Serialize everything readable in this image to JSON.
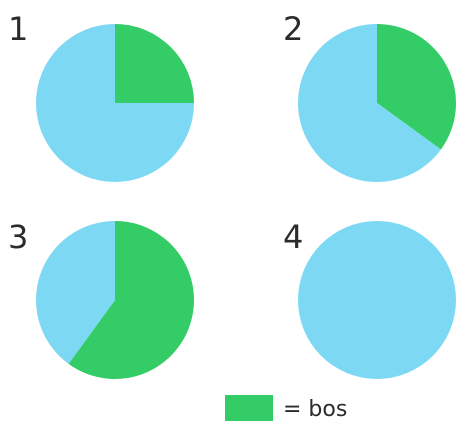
{
  "chart_data": [
    {
      "type": "pie",
      "number": "1",
      "categories": [
        "bos",
        "rest"
      ],
      "values": [
        0.25,
        0.75
      ],
      "colors": [
        "#33cc66",
        "#7dd8f4"
      ]
    },
    {
      "type": "pie",
      "number": "2",
      "categories": [
        "bos",
        "rest"
      ],
      "values": [
        0.35,
        0.65
      ],
      "colors": [
        "#33cc66",
        "#7dd8f4"
      ]
    },
    {
      "type": "pie",
      "number": "3",
      "categories": [
        "bos",
        "rest"
      ],
      "values": [
        0.6,
        0.4
      ],
      "colors": [
        "#33cc66",
        "#7dd8f4"
      ]
    },
    {
      "type": "pie",
      "number": "4",
      "categories": [
        "bos",
        "rest"
      ],
      "values": [
        0,
        1
      ],
      "colors": [
        "#33cc66",
        "#7dd8f4"
      ]
    }
  ],
  "legend": {
    "label": "= bos",
    "color": "#33cc66"
  }
}
